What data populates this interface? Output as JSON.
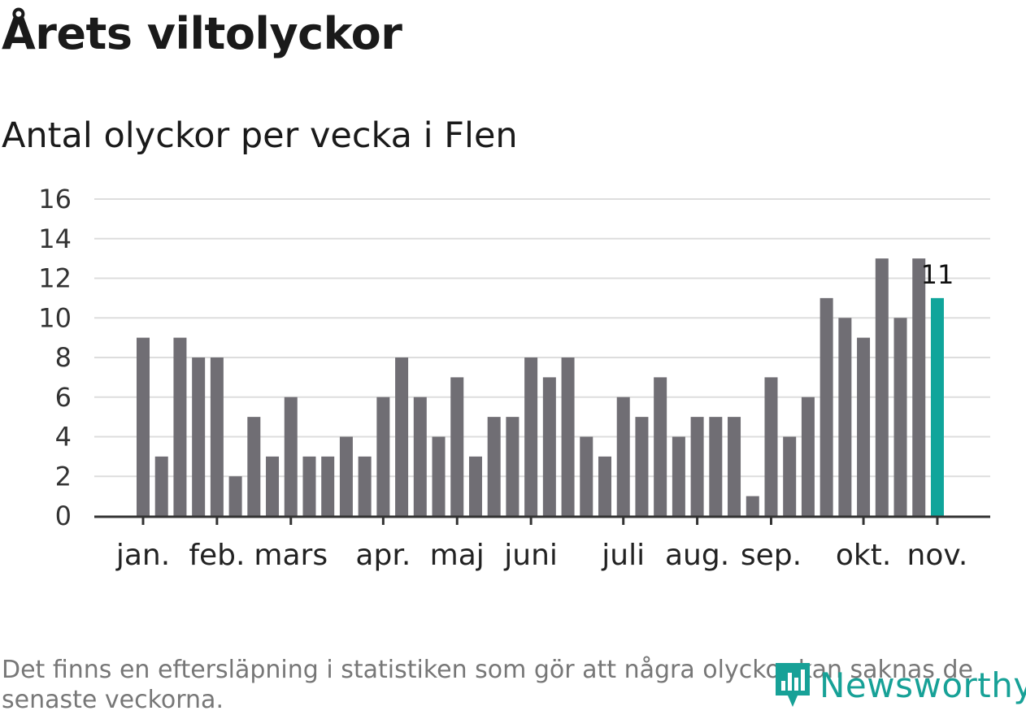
{
  "chart_data": {
    "type": "bar",
    "title": "Årets viltolyckor",
    "subtitle": "Antal olyckor per vecka i Flen",
    "xlabel": "",
    "ylabel": "",
    "ylim": [
      0,
      16
    ],
    "yticks": [
      "0",
      "2",
      "4",
      "6",
      "8",
      "10",
      "12",
      "14",
      "16"
    ],
    "grid": true,
    "values": [
      9,
      3,
      9,
      8,
      8,
      2,
      5,
      3,
      6,
      3,
      3,
      4,
      3,
      6,
      8,
      6,
      4,
      7,
      3,
      5,
      5,
      8,
      7,
      8,
      4,
      3,
      6,
      5,
      7,
      4,
      5,
      5,
      5,
      1,
      7,
      4,
      6,
      11,
      10,
      9,
      13,
      10,
      13,
      11
    ],
    "highlight_index": 43,
    "highlight_label": "11",
    "month_labels": [
      {
        "label": "jan.",
        "week": 0
      },
      {
        "label": "feb.",
        "week": 4
      },
      {
        "label": "mars",
        "week": 8
      },
      {
        "label": "apr.",
        "week": 13
      },
      {
        "label": "maj",
        "week": 17
      },
      {
        "label": "juni",
        "week": 21
      },
      {
        "label": "juli",
        "week": 26
      },
      {
        "label": "aug.",
        "week": 30
      },
      {
        "label": "sep.",
        "week": 34
      },
      {
        "label": "okt.",
        "week": 39
      },
      {
        "label": "nov.",
        "week": 43
      }
    ]
  },
  "footnote": "Det finns en eftersläpning i statistiken som gör att några olyckor kan saknas de senaste veckorna.",
  "logo": {
    "text": "Newsworthy",
    "icon": "bar-chart-pin-icon"
  },
  "colors": {
    "bar": "#706e74",
    "highlight": "#10a59b",
    "grid": "#dddddd",
    "axis": "#333333",
    "brand": "#17a197"
  }
}
